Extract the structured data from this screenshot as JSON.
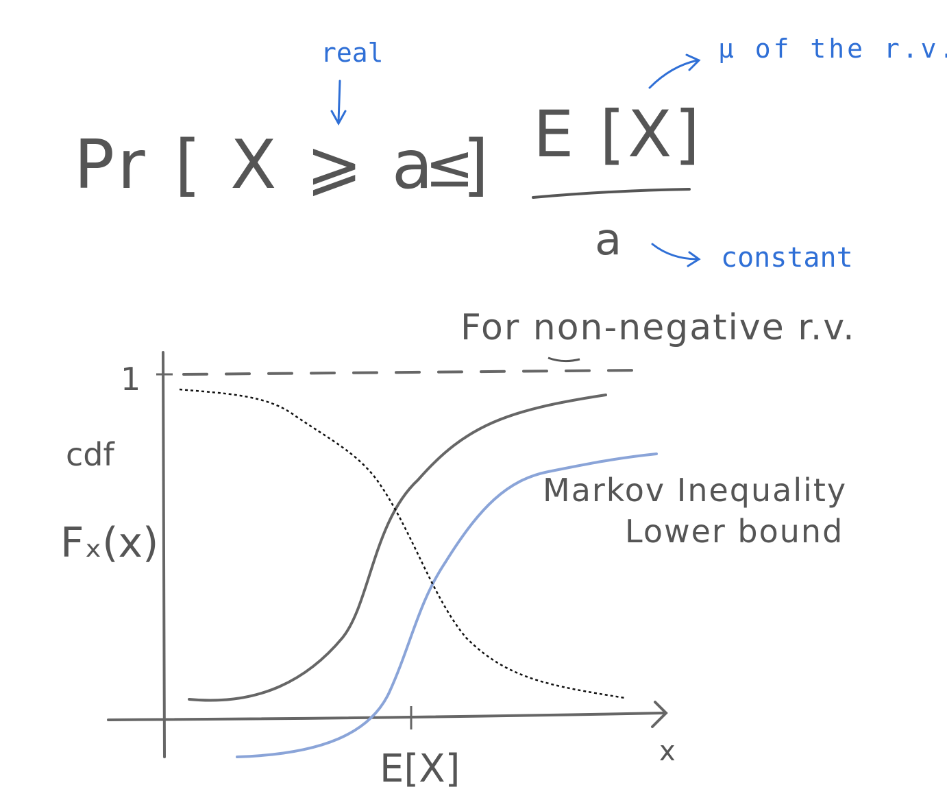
{
  "colors": {
    "ink": "#555555",
    "annotation": "#2f6fd6",
    "bound_curve": "#8aa4d8",
    "dotted_curve": "#111111"
  },
  "formula": {
    "lhs": "Pr [ X ⩾ a ]",
    "relation": "≤",
    "numerator": "E [X]",
    "denominator": "a"
  },
  "annotations": {
    "a_note": "real",
    "numerator_note": "μ of the r.v.",
    "denominator_note": "constant"
  },
  "condition": "For non-negative r.v.",
  "graph": {
    "y_tick_one": "1",
    "y_label_cdf": "cdf",
    "y_label_fx": "Fₓ(x)",
    "x_label": "x",
    "x_tick_mean": "E[X]",
    "curve_label_line1": "Markov Inequality",
    "curve_label_line2": "Lower bound"
  }
}
